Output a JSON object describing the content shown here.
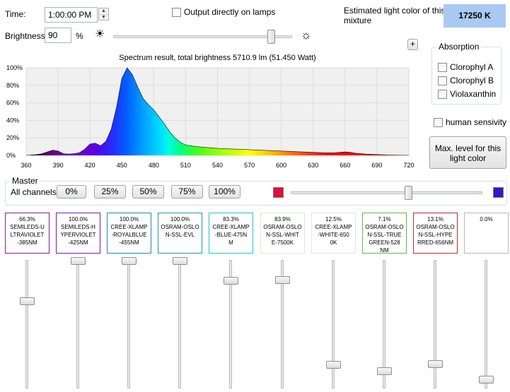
{
  "time": {
    "label": "Time:",
    "value": "1:00:00 PM"
  },
  "output_lamps": {
    "label": "Output directly on lamps"
  },
  "estimate": {
    "label_line1": "Estimated light color of this",
    "label_line2": "mixture",
    "value": "17250 K",
    "color": "#a9c9f2"
  },
  "brightness": {
    "label": "Brightness:",
    "value": "90",
    "unit": "%",
    "slider_level": 0.9
  },
  "plus_button": "+",
  "absorption": {
    "legend": "Absorption",
    "items": [
      "Clorophyl A",
      "Clorophyl B",
      "Violaxanthin"
    ]
  },
  "human_sensitivity": "human sensivity",
  "max_level_button": {
    "line1": "Max. level for this",
    "line2": "light color"
  },
  "chart_data": {
    "type": "area",
    "title": "Spectrum result, total brightness 5710.9 lm (51.450 Watt)",
    "xlim": [
      360,
      720
    ],
    "ylim": [
      0,
      100
    ],
    "x_ticks": [
      "360",
      "390",
      "420",
      "450",
      "480",
      "510",
      "540",
      "570",
      "600",
      "630",
      "660",
      "690",
      "720"
    ],
    "y_ticks": [
      "100%",
      "80%",
      "60%",
      "40%",
      "20%",
      "0%"
    ],
    "grid": true,
    "series": [
      {
        "x": [
          360,
          365,
          370,
          375,
          380,
          385,
          390,
          395,
          400,
          405,
          410,
          415,
          420,
          425,
          430,
          435,
          440,
          445,
          450,
          455,
          460,
          465,
          470,
          475,
          480,
          485,
          490,
          495,
          500,
          505,
          510,
          520,
          530,
          540,
          550,
          560,
          570,
          580,
          590,
          600,
          610,
          620,
          630,
          640,
          650,
          655,
          660,
          665,
          670,
          680,
          690,
          700,
          710,
          720
        ],
        "y": [
          0,
          0.5,
          1,
          2,
          4,
          6,
          5,
          2,
          1.5,
          2,
          3,
          7,
          13,
          14,
          11,
          16,
          30,
          55,
          88,
          100,
          92,
          78,
          65,
          58,
          52,
          44,
          36,
          27,
          20,
          15,
          12,
          10,
          9,
          8,
          7.5,
          7,
          6.5,
          6,
          5.5,
          5,
          4.5,
          4,
          3.5,
          3,
          3,
          3.5,
          4,
          3.5,
          2.5,
          1.5,
          1,
          0.5,
          0.3,
          0
        ]
      }
    ]
  },
  "master": {
    "legend": "Master",
    "all_channels": "All channels",
    "buttons": [
      "0%",
      "25%",
      "50%",
      "75%",
      "100%"
    ],
    "slider_level": 0.62,
    "start_color": "#e0103a",
    "end_color": "#2a1cc8"
  },
  "channels": [
    {
      "percent": "66.3%",
      "name_lines": [
        "SEMILEDS-U",
        "LTRAVIOLET",
        "-385NM"
      ],
      "border": "#8b1a9b",
      "level": 0.663
    },
    {
      "percent": "100.0%",
      "name_lines": [
        "SEMILEDS-H",
        "YPERVIOLET",
        "-425NM"
      ],
      "border": "#7a1aa8",
      "level": 1.0
    },
    {
      "percent": "100.0%",
      "name_lines": [
        "CREE-XLAMP",
        "-ROYALBLUE",
        "-455NM"
      ],
      "border": "#1f8aa8",
      "level": 1.0
    },
    {
      "percent": "100.0%",
      "name_lines": [
        "OSRAM-OSLO",
        "N-SSL-EVL"
      ],
      "border": "#1f9aa8",
      "level": 1.0
    },
    {
      "percent": "83.3%",
      "name_lines": [
        "CREE-XLAMP",
        "-BLUE-475N",
        "M"
      ],
      "border": "#2bc0d0",
      "level": 0.833
    },
    {
      "percent": "83.9%",
      "name_lines": [
        "OSRAM-OSLO",
        "N-SSL-WHIT",
        "E-7500K"
      ],
      "border": "#d8e8d8",
      "level": 0.839
    },
    {
      "percent": "12.5%",
      "name_lines": [
        "CREE-XLAMP",
        "-WHITE-650",
        "0K"
      ],
      "border": "#e4e4e4",
      "level": 0.125
    },
    {
      "percent": "7.1%",
      "name_lines": [
        "OSRAM-OSLO",
        "N-SSL-TRUE",
        "GREEN-528",
        "NM"
      ],
      "border": "#5ac040",
      "level": 0.071
    },
    {
      "percent": "13.1%",
      "name_lines": [
        "OSRAM-OSLO",
        "N-SSL-HYPE",
        "RRED-656NM"
      ],
      "border": "#b03030",
      "level": 0.131
    },
    {
      "percent": "0.0%",
      "name_lines": [],
      "border": "#b8b8b8",
      "level": 0.0
    }
  ]
}
